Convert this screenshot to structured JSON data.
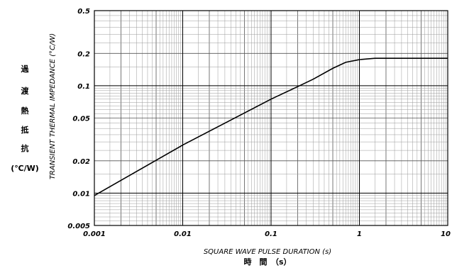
{
  "chart_data": {
    "type": "line",
    "xscale": "log",
    "yscale": "log",
    "xlim": [
      0.001,
      10
    ],
    "ylim": [
      0.005,
      0.5
    ],
    "grid": true,
    "xlabel": "SQUARE WAVE PULSE DURATION (s)",
    "xlabel_jp": "時　間　（s）",
    "ylabel": "TRANSIENT THERMAL IMPEDANCE (°C/W)",
    "ylabel_jp": [
      "過",
      "渡",
      "熱",
      "抵",
      "抗"
    ],
    "ylabel_jp_unit": "(℃/W)",
    "x_ticks": [
      "0.001",
      "0.01",
      "0.1",
      "1",
      "10"
    ],
    "y_ticks": [
      "0.005",
      "0.01",
      "0.02",
      "0.05",
      "0.1",
      "0.2",
      "0.5"
    ],
    "series": [
      {
        "color": "#000000",
        "x": [
          0.001,
          0.01,
          0.1,
          0.2,
          0.3,
          0.5,
          0.7,
          1.0,
          1.5,
          2.0,
          5.0,
          10.0
        ],
        "y": [
          0.0095,
          0.028,
          0.075,
          0.098,
          0.115,
          0.145,
          0.165,
          0.175,
          0.18,
          0.18,
          0.18,
          0.18
        ]
      }
    ]
  }
}
